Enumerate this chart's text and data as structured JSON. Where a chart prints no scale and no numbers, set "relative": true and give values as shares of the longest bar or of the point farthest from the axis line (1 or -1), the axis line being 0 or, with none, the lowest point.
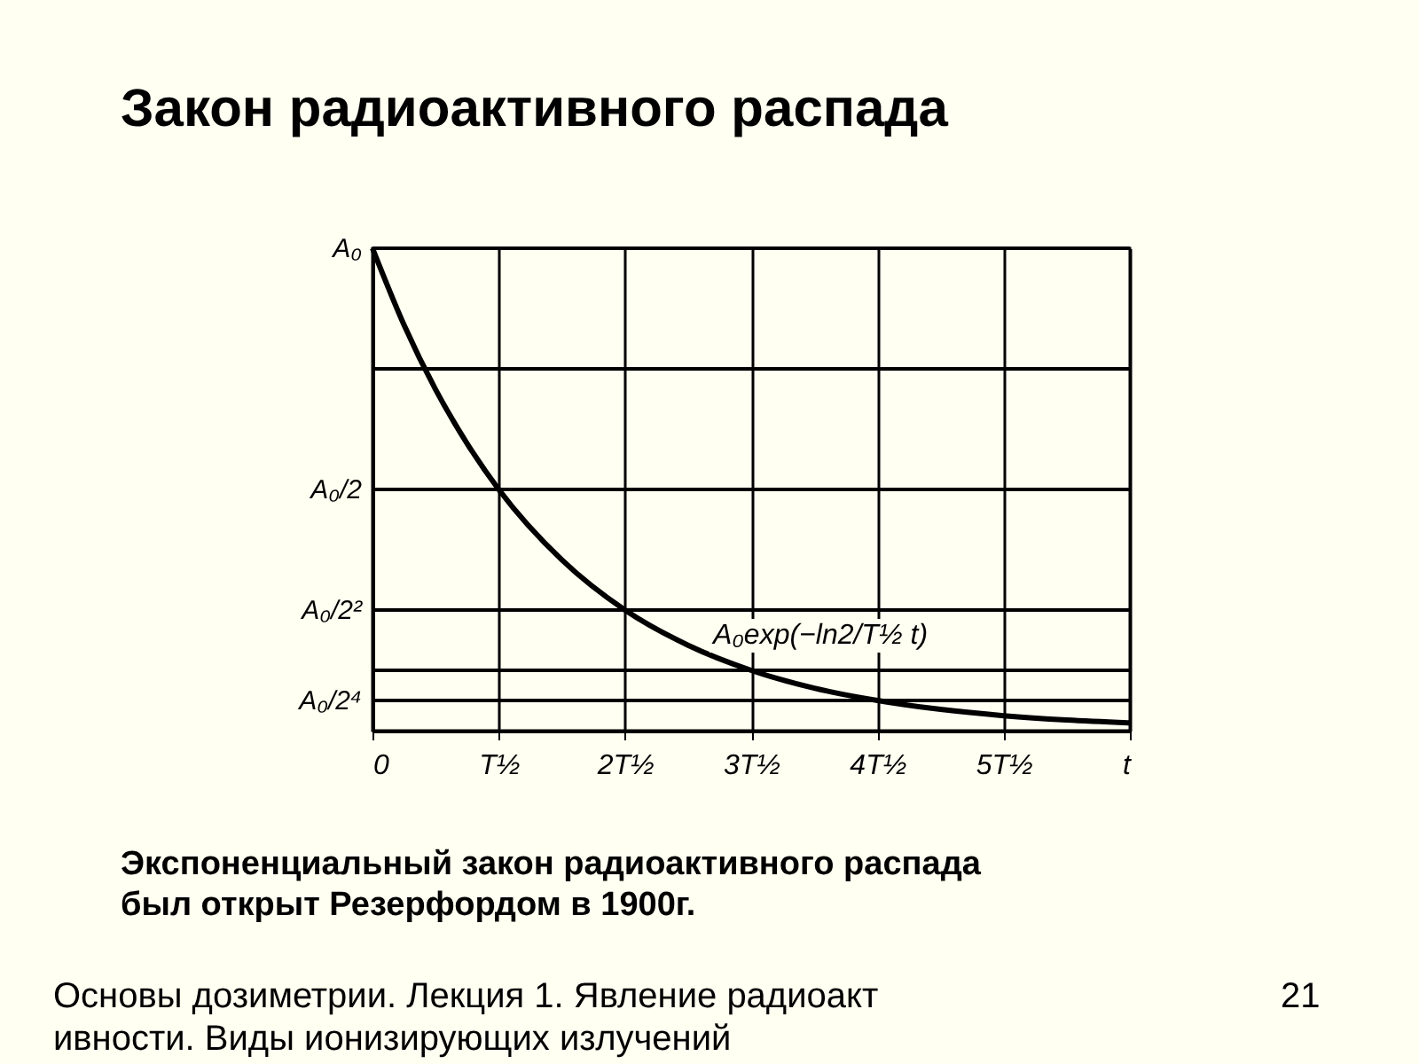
{
  "chart_data": {
    "type": "line",
    "title": "Закон радиоактивного распада",
    "x": [
      0,
      0.25,
      0.5,
      0.75,
      1,
      1.5,
      2,
      2.5,
      3,
      3.5,
      4,
      4.5,
      5,
      5.5,
      6
    ],
    "series": [
      {
        "color": "#000000",
        "values": [
          1,
          0.841,
          0.707,
          0.595,
          0.5,
          0.354,
          0.25,
          0.177,
          0.125,
          0.088,
          0.0625,
          0.044,
          0.031,
          0.022,
          0.016
        ]
      }
    ],
    "xlim": [
      0,
      6
    ],
    "xticks": [
      0,
      {
        "value": 1,
        "label": "T½"
      },
      {
        "value": 2,
        "label": "2T½"
      },
      {
        "value": 3,
        "label": "3T½"
      },
      {
        "value": 4,
        "label": "4T½"
      },
      {
        "value": 5,
        "label": "5T½"
      },
      {
        "value": 6,
        "label": "t"
      }
    ],
    "relative": true,
    "ref_lines": [
      {
        "axis": "y",
        "value": 1,
        "label": "A₀"
      },
      {
        "axis": "y",
        "value": 0.75,
        "label": null
      },
      {
        "axis": "y",
        "value": 0.5,
        "label": "A₀/2"
      },
      {
        "axis": "y",
        "value": 0.25,
        "label": "A₀/2²"
      },
      {
        "axis": "y",
        "value": 0.125,
        "label": null
      },
      {
        "axis": "y",
        "value": 0.0625,
        "label": "A₀/2⁴"
      }
    ],
    "grid": "x",
    "marker": "none",
    "line_style": "solid",
    "annotations": [
      "A₀exp(−ln2/T½ t)",
      "Экспоненциальный закон радиоактивного распада был открыт Резерфордом в 1900г.",
      "Основы дозиметрии. Лекция 1. Явление радиоакт ивности. Виды ионизирующих излучений",
      "21"
    ]
  }
}
